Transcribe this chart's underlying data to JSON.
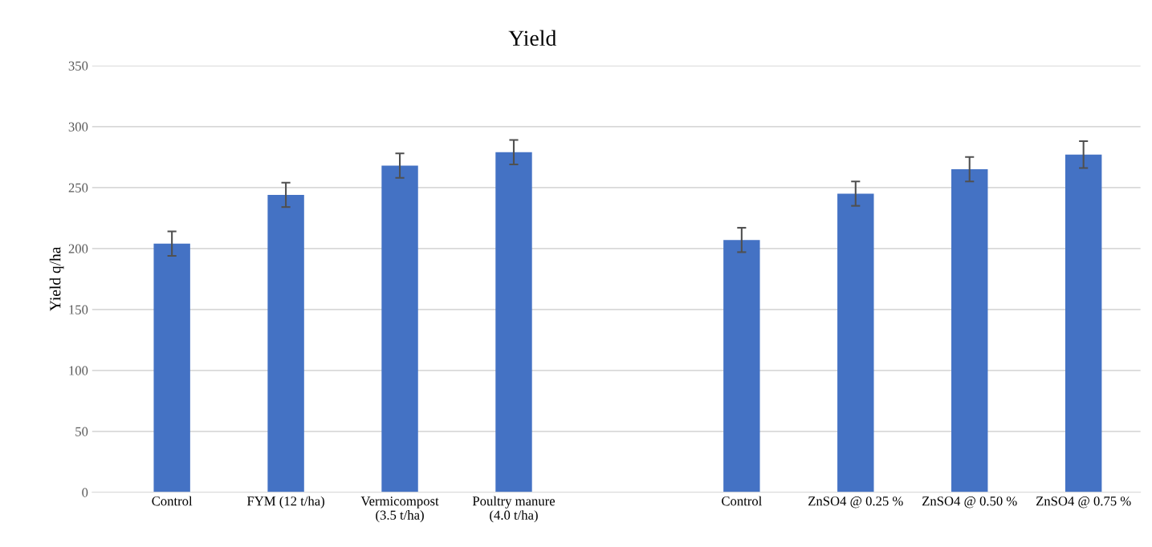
{
  "chart_data": {
    "type": "bar",
    "title": "Yield",
    "ylabel": "Yield q/ha",
    "categories": [
      "Control",
      "FYM (12 t/ha)",
      "Vermicompost\n(3.5 t/ha)",
      "Poultry manure\n(4.0 t/ha)",
      null,
      "Control",
      "ZnSO4 @ 0.25 %",
      "ZnSO4 @ 0.50 %",
      "ZnSO4 @ 0.75 %"
    ],
    "values": [
      204,
      244,
      268,
      279,
      null,
      207,
      245,
      265,
      277
    ],
    "errors": [
      10,
      10,
      10,
      10,
      null,
      10,
      10,
      10,
      11
    ],
    "color": "#4472c4",
    "ylim": [
      0,
      350
    ],
    "yticks": [
      0,
      50,
      100,
      150,
      200,
      250,
      300,
      350
    ],
    "grid": "y"
  }
}
